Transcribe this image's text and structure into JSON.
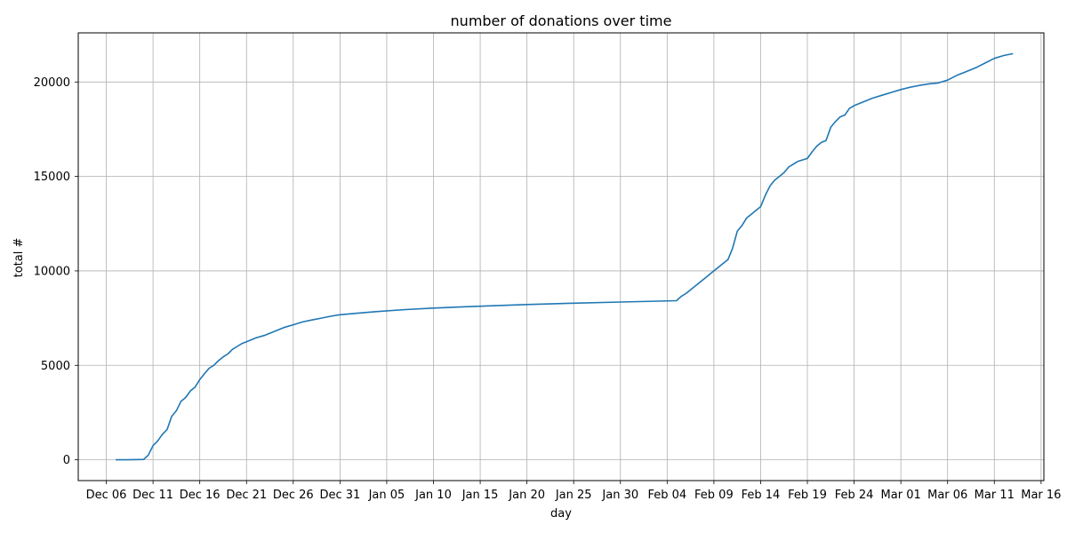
{
  "chart_data": {
    "type": "line",
    "title": "number of donations over time",
    "xlabel": "day",
    "ylabel": "total #",
    "grid": true,
    "legend": "none",
    "line_color": "#1f77b4",
    "grid_color": "#b0b0b0",
    "x_range": [
      "2022-12-03",
      "2023-03-16"
    ],
    "ylim": [
      -1100,
      22600
    ],
    "x_ticks": [
      {
        "date": "2022-12-06",
        "label": "Dec 06"
      },
      {
        "date": "2022-12-11",
        "label": "Dec 11"
      },
      {
        "date": "2022-12-16",
        "label": "Dec 16"
      },
      {
        "date": "2022-12-21",
        "label": "Dec 21"
      },
      {
        "date": "2022-12-26",
        "label": "Dec 26"
      },
      {
        "date": "2022-12-31",
        "label": "Dec 31"
      },
      {
        "date": "2023-01-05",
        "label": "Jan 05"
      },
      {
        "date": "2023-01-10",
        "label": "Jan 10"
      },
      {
        "date": "2023-01-15",
        "label": "Jan 15"
      },
      {
        "date": "2023-01-20",
        "label": "Jan 20"
      },
      {
        "date": "2023-01-25",
        "label": "Jan 25"
      },
      {
        "date": "2023-01-30",
        "label": "Jan 30"
      },
      {
        "date": "2023-02-04",
        "label": "Feb 04"
      },
      {
        "date": "2023-02-09",
        "label": "Feb 09"
      },
      {
        "date": "2023-02-14",
        "label": "Feb 14"
      },
      {
        "date": "2023-02-19",
        "label": "Feb 19"
      },
      {
        "date": "2023-02-24",
        "label": "Feb 24"
      },
      {
        "date": "2023-03-01",
        "label": "Mar 01"
      },
      {
        "date": "2023-03-06",
        "label": "Mar 06"
      },
      {
        "date": "2023-03-11",
        "label": "Mar 11"
      },
      {
        "date": "2023-03-16",
        "label": "Mar 16"
      }
    ],
    "y_ticks": [
      {
        "value": 0,
        "label": "0"
      },
      {
        "value": 5000,
        "label": "5000"
      },
      {
        "value": 10000,
        "label": "10000"
      },
      {
        "value": 15000,
        "label": "15000"
      },
      {
        "value": 20000,
        "label": "20000"
      }
    ],
    "series": [
      {
        "points": [
          [
            "2022-12-07",
            0
          ],
          [
            "2022-12-08",
            0
          ],
          [
            "2022-12-09",
            10
          ],
          [
            "2022-12-10",
            20
          ],
          [
            "2022-12-10T12",
            250
          ],
          [
            "2022-12-11",
            750
          ],
          [
            "2022-12-11T12",
            1000
          ],
          [
            "2022-12-12",
            1350
          ],
          [
            "2022-12-12T12",
            1600
          ],
          [
            "2022-12-13",
            2300
          ],
          [
            "2022-12-13T12",
            2600
          ],
          [
            "2022-12-14",
            3100
          ],
          [
            "2022-12-14T12",
            3300
          ],
          [
            "2022-12-15",
            3650
          ],
          [
            "2022-12-15T12",
            3850
          ],
          [
            "2022-12-16",
            4250
          ],
          [
            "2022-12-16T12",
            4550
          ],
          [
            "2022-12-17",
            4850
          ],
          [
            "2022-12-17T12",
            5000
          ],
          [
            "2022-12-18",
            5250
          ],
          [
            "2022-12-18T12",
            5450
          ],
          [
            "2022-12-19",
            5600
          ],
          [
            "2022-12-19T12",
            5850
          ],
          [
            "2022-12-20",
            6000
          ],
          [
            "2022-12-20T12",
            6150
          ],
          [
            "2022-12-21",
            6250
          ],
          [
            "2022-12-22",
            6450
          ],
          [
            "2022-12-23",
            6600
          ],
          [
            "2022-12-24",
            6800
          ],
          [
            "2022-12-25",
            7000
          ],
          [
            "2022-12-26",
            7150
          ],
          [
            "2022-12-27",
            7300
          ],
          [
            "2022-12-28",
            7400
          ],
          [
            "2022-12-29",
            7500
          ],
          [
            "2022-12-30",
            7600
          ],
          [
            "2022-12-31",
            7680
          ],
          [
            "2023-01-02",
            7770
          ],
          [
            "2023-01-04",
            7850
          ],
          [
            "2023-01-07",
            7950
          ],
          [
            "2023-01-10",
            8030
          ],
          [
            "2023-01-15",
            8130
          ],
          [
            "2023-01-20",
            8220
          ],
          [
            "2023-01-25",
            8290
          ],
          [
            "2023-01-30",
            8350
          ],
          [
            "2023-02-03",
            8400
          ],
          [
            "2023-02-05",
            8420
          ],
          [
            "2023-02-05T12",
            8650
          ],
          [
            "2023-02-06",
            8800
          ],
          [
            "2023-02-06T12",
            9000
          ],
          [
            "2023-02-07",
            9200
          ],
          [
            "2023-02-07T12",
            9400
          ],
          [
            "2023-02-08",
            9600
          ],
          [
            "2023-02-08T12",
            9800
          ],
          [
            "2023-02-09",
            10000
          ],
          [
            "2023-02-09T12",
            10200
          ],
          [
            "2023-02-10",
            10400
          ],
          [
            "2023-02-10T12",
            10600
          ],
          [
            "2023-02-11",
            11200
          ],
          [
            "2023-02-11T12",
            12100
          ],
          [
            "2023-02-12",
            12400
          ],
          [
            "2023-02-12T12",
            12800
          ],
          [
            "2023-02-13",
            13000
          ],
          [
            "2023-02-13T12",
            13200
          ],
          [
            "2023-02-14",
            13400
          ],
          [
            "2023-02-14T12",
            14000
          ],
          [
            "2023-02-15",
            14500
          ],
          [
            "2023-02-15T12",
            14800
          ],
          [
            "2023-02-16",
            15000
          ],
          [
            "2023-02-16T12",
            15200
          ],
          [
            "2023-02-17",
            15500
          ],
          [
            "2023-02-17T12",
            15650
          ],
          [
            "2023-02-18",
            15800
          ],
          [
            "2023-02-19",
            15950
          ],
          [
            "2023-02-19T12",
            16300
          ],
          [
            "2023-02-20",
            16600
          ],
          [
            "2023-02-20T12",
            16800
          ],
          [
            "2023-02-21",
            16900
          ],
          [
            "2023-02-21T12",
            17600
          ],
          [
            "2023-02-22",
            17900
          ],
          [
            "2023-02-22T12",
            18150
          ],
          [
            "2023-02-23",
            18250
          ],
          [
            "2023-02-23T12",
            18600
          ],
          [
            "2023-02-24",
            18750
          ],
          [
            "2023-02-25",
            18950
          ],
          [
            "2023-02-26",
            19150
          ],
          [
            "2023-02-27",
            19300
          ],
          [
            "2023-02-28",
            19450
          ],
          [
            "2023-03-01",
            19600
          ],
          [
            "2023-03-02",
            19720
          ],
          [
            "2023-03-03",
            19820
          ],
          [
            "2023-03-04",
            19900
          ],
          [
            "2023-03-05",
            19950
          ],
          [
            "2023-03-06",
            20100
          ],
          [
            "2023-03-07",
            20350
          ],
          [
            "2023-03-08",
            20550
          ],
          [
            "2023-03-09",
            20750
          ],
          [
            "2023-03-10",
            21000
          ],
          [
            "2023-03-11",
            21250
          ],
          [
            "2023-03-12",
            21400
          ],
          [
            "2023-03-13",
            21500
          ]
        ]
      }
    ]
  }
}
